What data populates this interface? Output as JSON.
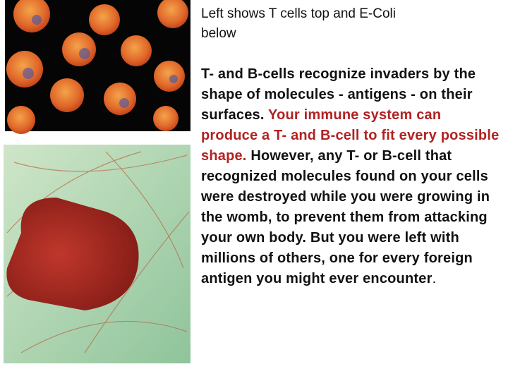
{
  "caption": "Left shows T cells top and E-Coli below",
  "body": {
    "part1": "T- and B-cells recognize invaders by the shape of molecules - antigens - on their surfaces.",
    "part2": "Your immune system can produce a T- and B-cell to fit every possible shape.",
    "part3": "However, any T- or B-cell that recognized molecules found on your cells were destroyed while you were growing in the womb, to prevent them from attacking your own body. But you were left with millions of others, one for every foreign antigen you might ever encounter",
    "part4": "."
  }
}
